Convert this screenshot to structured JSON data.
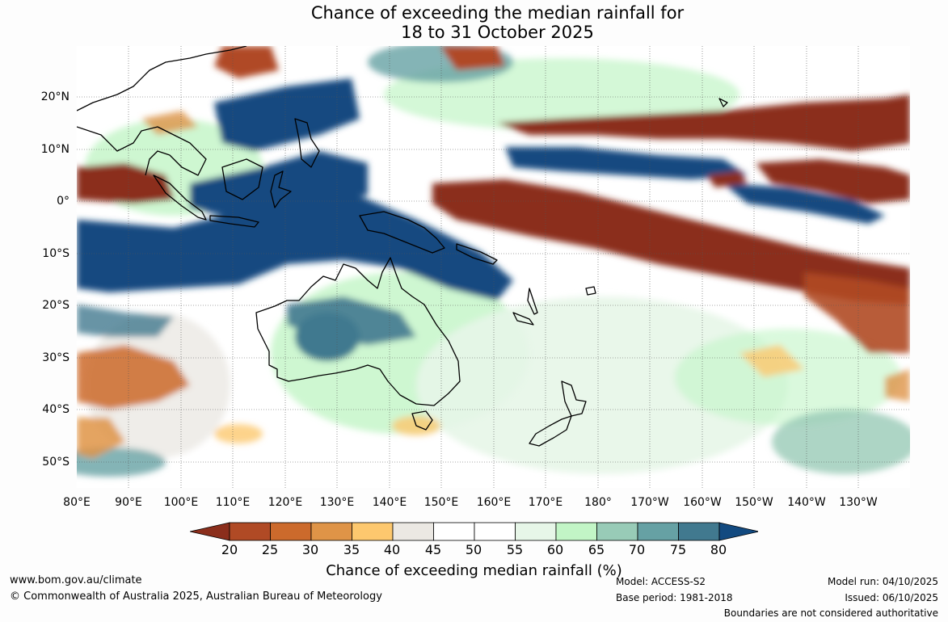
{
  "title_line1": "Chance of exceeding the median rainfall for",
  "title_line2": "18 to 31 October 2025",
  "lat_labels": [
    "20°N",
    "10°N",
    "0°",
    "10°S",
    "20°S",
    "30°S",
    "40°S",
    "50°S"
  ],
  "lon_labels": [
    "80°E",
    "90°E",
    "100°E",
    "110°E",
    "120°E",
    "130°E",
    "140°E",
    "150°E",
    "160°E",
    "170°E",
    "180°",
    "170°W",
    "160°W",
    "150°W",
    "140°W",
    "130°W"
  ],
  "colorbar": {
    "ticks": [
      "20",
      "25",
      "30",
      "35",
      "40",
      "45",
      "50",
      "55",
      "60",
      "65",
      "70",
      "75",
      "80"
    ],
    "colors": [
      "#8b2e1c",
      "#b04a25",
      "#cc6a2c",
      "#df9447",
      "#fdc86e",
      "#ebe8e3",
      "#ffffff",
      "#ffffff",
      "#e7f6e8",
      "#c2f5c6",
      "#98cbb7",
      "#66a1a4",
      "#41798f",
      "#124a80"
    ],
    "title": "Chance of exceeding median rainfall (%)"
  },
  "footer": {
    "url": "www.bom.gov.au/climate",
    "copyright": "© Commonwealth of Australia 2025, Australian Bureau of Meteorology",
    "model": "Model: ACCESS-S2",
    "base_period": "Base period: 1981-2018",
    "model_run": "Model run: 04/10/2025",
    "issued": "Issued: 06/10/2025",
    "disclaimer": "Boundaries are not considered authoritative"
  }
}
